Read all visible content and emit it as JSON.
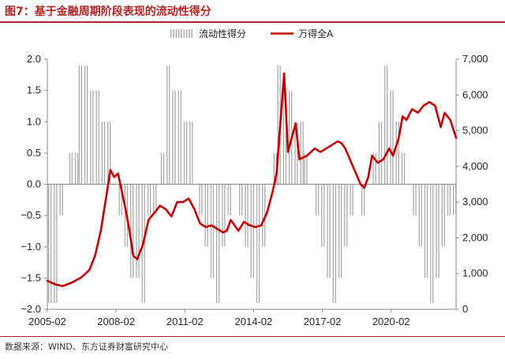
{
  "figure": {
    "title": "图7：基于金融周期阶段表现的流动性得分",
    "source": "数据来源：WIND、东方证券财富研究中心"
  },
  "chart_data": {
    "type": "bar+line",
    "title": "图7：基于金融周期阶段表现的流动性得分",
    "legend": [
      "流动性得分",
      "万得全A"
    ],
    "legend_position": "top-right",
    "x_tick_labels": [
      "2005-02",
      "2008-02",
      "2011-02",
      "2014-02",
      "2017-02",
      "2020-02"
    ],
    "x_range": [
      "2005-02",
      "2022-12"
    ],
    "y_left": {
      "ticks": [
        2.0,
        1.5,
        1.0,
        0.5,
        0.0,
        -0.5,
        -1.0,
        -1.5,
        -2.0
      ],
      "tick_labels": [
        "2.0",
        "1.5",
        "1.0",
        "0.5",
        "0.0",
        "−0.5",
        "−1.0",
        "−1.5",
        "−2.0"
      ],
      "range": [
        -2,
        2
      ]
    },
    "y_right": {
      "ticks": [
        0,
        1000,
        2000,
        3000,
        4000,
        5000,
        6000,
        7000
      ],
      "tick_labels": [
        "0",
        "1,000",
        "2,000",
        "3,000",
        "4,000",
        "5,000",
        "6,000",
        "7,000"
      ],
      "range": [
        0,
        7000
      ]
    },
    "colors": {
      "bars": "#a9a9a9",
      "line": "#c00000",
      "accent": "#b22222"
    },
    "grid": false,
    "series": [
      {
        "name": "流动性得分",
        "type": "bar",
        "axis": "left",
        "points": [
          [
            "2005-02",
            -1.9
          ],
          [
            "2005-05",
            -1.9
          ],
          [
            "2005-08",
            -0.5
          ],
          [
            "2005-11",
            0.0
          ],
          [
            "2006-01",
            0.5
          ],
          [
            "2006-04",
            0.5
          ],
          [
            "2006-06",
            1.9
          ],
          [
            "2006-09",
            1.9
          ],
          [
            "2006-12",
            1.5
          ],
          [
            "2007-03",
            1.5
          ],
          [
            "2007-06",
            1.0
          ],
          [
            "2007-09",
            1.0
          ],
          [
            "2007-12",
            0.0
          ],
          [
            "2008-03",
            -0.5
          ],
          [
            "2008-06",
            -1.0
          ],
          [
            "2008-09",
            -1.5
          ],
          [
            "2008-12",
            -1.5
          ],
          [
            "2009-03",
            -1.9
          ],
          [
            "2009-06",
            -0.5
          ],
          [
            "2009-09",
            -0.5
          ],
          [
            "2009-11",
            0.0
          ],
          [
            "2010-01",
            0.5
          ],
          [
            "2010-04",
            1.9
          ],
          [
            "2010-07",
            1.5
          ],
          [
            "2010-10",
            1.5
          ],
          [
            "2011-01",
            1.0
          ],
          [
            "2011-04",
            1.0
          ],
          [
            "2011-06",
            0.0
          ],
          [
            "2011-09",
            -0.5
          ],
          [
            "2011-12",
            -1.0
          ],
          [
            "2012-03",
            -1.5
          ],
          [
            "2012-06",
            -1.9
          ],
          [
            "2012-09",
            -1.0
          ],
          [
            "2012-12",
            -0.5
          ],
          [
            "2013-03",
            0.0
          ],
          [
            "2013-06",
            -0.5
          ],
          [
            "2013-09",
            -1.0
          ],
          [
            "2013-12",
            -1.5
          ],
          [
            "2014-03",
            -1.9
          ],
          [
            "2014-06",
            -1.0
          ],
          [
            "2014-09",
            0.0
          ],
          [
            "2014-12",
            0.5
          ],
          [
            "2015-02",
            1.9
          ],
          [
            "2015-05",
            1.5
          ],
          [
            "2015-08",
            1.5
          ],
          [
            "2015-11",
            1.0
          ],
          [
            "2016-02",
            1.0
          ],
          [
            "2016-04",
            0.5
          ],
          [
            "2016-07",
            0.0
          ],
          [
            "2016-10",
            -0.5
          ],
          [
            "2017-01",
            -1.0
          ],
          [
            "2017-04",
            -1.5
          ],
          [
            "2017-07",
            -1.9
          ],
          [
            "2017-10",
            -1.5
          ],
          [
            "2018-01",
            -1.0
          ],
          [
            "2018-04",
            -0.5
          ],
          [
            "2018-07",
            0.0
          ],
          [
            "2018-10",
            -0.5
          ],
          [
            "2019-01",
            0.0
          ],
          [
            "2019-04",
            0.5
          ],
          [
            "2019-07",
            1.0
          ],
          [
            "2019-10",
            1.9
          ],
          [
            "2020-01",
            1.5
          ],
          [
            "2020-04",
            1.0
          ],
          [
            "2020-07",
            0.5
          ],
          [
            "2020-10",
            0.0
          ],
          [
            "2021-01",
            -0.5
          ],
          [
            "2021-04",
            -1.0
          ],
          [
            "2021-07",
            -1.5
          ],
          [
            "2021-10",
            -1.9
          ],
          [
            "2022-01",
            -1.5
          ],
          [
            "2022-04",
            -1.0
          ],
          [
            "2022-07",
            -0.5
          ],
          [
            "2022-10",
            -0.5
          ]
        ]
      },
      {
        "name": "万得全A",
        "type": "line",
        "axis": "right",
        "points": [
          [
            "2005-02",
            800
          ],
          [
            "2005-06",
            700
          ],
          [
            "2005-10",
            650
          ],
          [
            "2006-03",
            750
          ],
          [
            "2006-08",
            900
          ],
          [
            "2006-12",
            1100
          ],
          [
            "2007-03",
            1500
          ],
          [
            "2007-06",
            2200
          ],
          [
            "2007-09",
            3200
          ],
          [
            "2007-11",
            3900
          ],
          [
            "2008-01",
            3700
          ],
          [
            "2008-03",
            3800
          ],
          [
            "2008-05",
            3300
          ],
          [
            "2008-07",
            2800
          ],
          [
            "2008-09",
            2200
          ],
          [
            "2008-11",
            1500
          ],
          [
            "2009-01",
            1400
          ],
          [
            "2009-04",
            1800
          ],
          [
            "2009-07",
            2500
          ],
          [
            "2009-10",
            2700
          ],
          [
            "2010-01",
            2900
          ],
          [
            "2010-04",
            2800
          ],
          [
            "2010-07",
            2600
          ],
          [
            "2010-10",
            3000
          ],
          [
            "2011-01",
            3000
          ],
          [
            "2011-04",
            3100
          ],
          [
            "2011-07",
            2800
          ],
          [
            "2011-10",
            2400
          ],
          [
            "2012-01",
            2300
          ],
          [
            "2012-04",
            2350
          ],
          [
            "2012-07",
            2250
          ],
          [
            "2012-10",
            2150
          ],
          [
            "2012-12",
            2200
          ],
          [
            "2013-02",
            2500
          ],
          [
            "2013-06",
            2200
          ],
          [
            "2013-09",
            2450
          ],
          [
            "2013-12",
            2350
          ],
          [
            "2014-03",
            2300
          ],
          [
            "2014-06",
            2350
          ],
          [
            "2014-09",
            2700
          ],
          [
            "2014-12",
            3300
          ],
          [
            "2015-02",
            3800
          ],
          [
            "2015-04",
            5200
          ],
          [
            "2015-06",
            6600
          ],
          [
            "2015-08",
            4400
          ],
          [
            "2015-10",
            4800
          ],
          [
            "2015-12",
            5200
          ],
          [
            "2016-02",
            4200
          ],
          [
            "2016-06",
            4300
          ],
          [
            "2016-10",
            4500
          ],
          [
            "2017-01",
            4400
          ],
          [
            "2017-04",
            4500
          ],
          [
            "2017-07",
            4600
          ],
          [
            "2017-10",
            4700
          ],
          [
            "2017-12",
            4650
          ],
          [
            "2018-02",
            4500
          ],
          [
            "2018-06",
            4000
          ],
          [
            "2018-10",
            3500
          ],
          [
            "2018-12",
            3400
          ],
          [
            "2019-02",
            3700
          ],
          [
            "2019-04",
            4300
          ],
          [
            "2019-07",
            4100
          ],
          [
            "2019-10",
            4200
          ],
          [
            "2020-01",
            4500
          ],
          [
            "2020-03",
            4300
          ],
          [
            "2020-06",
            4800
          ],
          [
            "2020-08",
            5400
          ],
          [
            "2020-10",
            5300
          ],
          [
            "2021-01",
            5600
          ],
          [
            "2021-04",
            5500
          ],
          [
            "2021-07",
            5700
          ],
          [
            "2021-10",
            5800
          ],
          [
            "2022-01",
            5700
          ],
          [
            "2022-04",
            5100
          ],
          [
            "2022-06",
            5500
          ],
          [
            "2022-09",
            5300
          ],
          [
            "2022-12",
            4800
          ]
        ]
      }
    ]
  }
}
